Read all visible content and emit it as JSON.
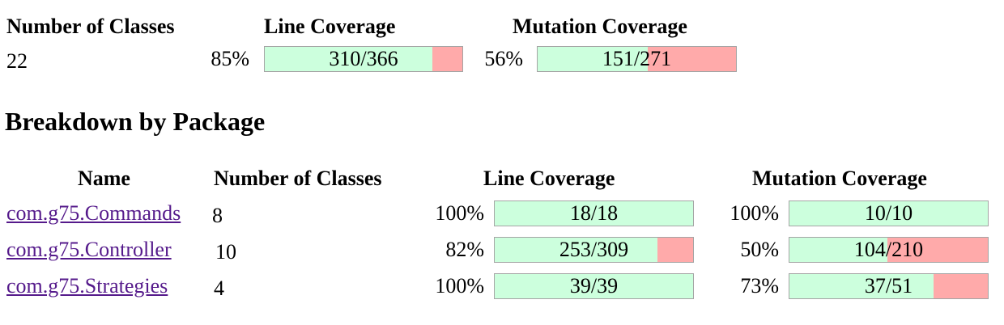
{
  "summary": {
    "headers": {
      "classes": "Number of Classes",
      "line": "Line Coverage",
      "mutation": "Mutation Coverage"
    },
    "classes": "22",
    "line": {
      "percent": "85%",
      "ratio": "310/366",
      "fraction": 0.847
    },
    "mutation": {
      "percent": "56%",
      "ratio": "151/271",
      "fraction": 0.557
    }
  },
  "breakdown": {
    "title": "Breakdown by Package",
    "headers": {
      "name": "Name",
      "classes": "Number of Classes",
      "line": "Line Coverage",
      "mutation": "Mutation Coverage"
    },
    "rows": [
      {
        "name": "com.g75.Commands",
        "classes": "8",
        "line": {
          "percent": "100%",
          "ratio": "18/18",
          "fraction": 1.0
        },
        "mutation": {
          "percent": "100%",
          "ratio": "10/10",
          "fraction": 1.0
        }
      },
      {
        "name": "com.g75.Controller",
        "classes": "10",
        "line": {
          "percent": "82%",
          "ratio": "253/309",
          "fraction": 0.819
        },
        "mutation": {
          "percent": "50%",
          "ratio": "104/210",
          "fraction": 0.495
        }
      },
      {
        "name": "com.g75.Strategies",
        "classes": "4",
        "line": {
          "percent": "100%",
          "ratio": "39/39",
          "fraction": 1.0
        },
        "mutation": {
          "percent": "73%",
          "ratio": "37/51",
          "fraction": 0.725
        }
      }
    ]
  },
  "colors": {
    "covered": "#ccffdd",
    "uncovered": "#ffaaaa",
    "link": "#551a8b"
  }
}
